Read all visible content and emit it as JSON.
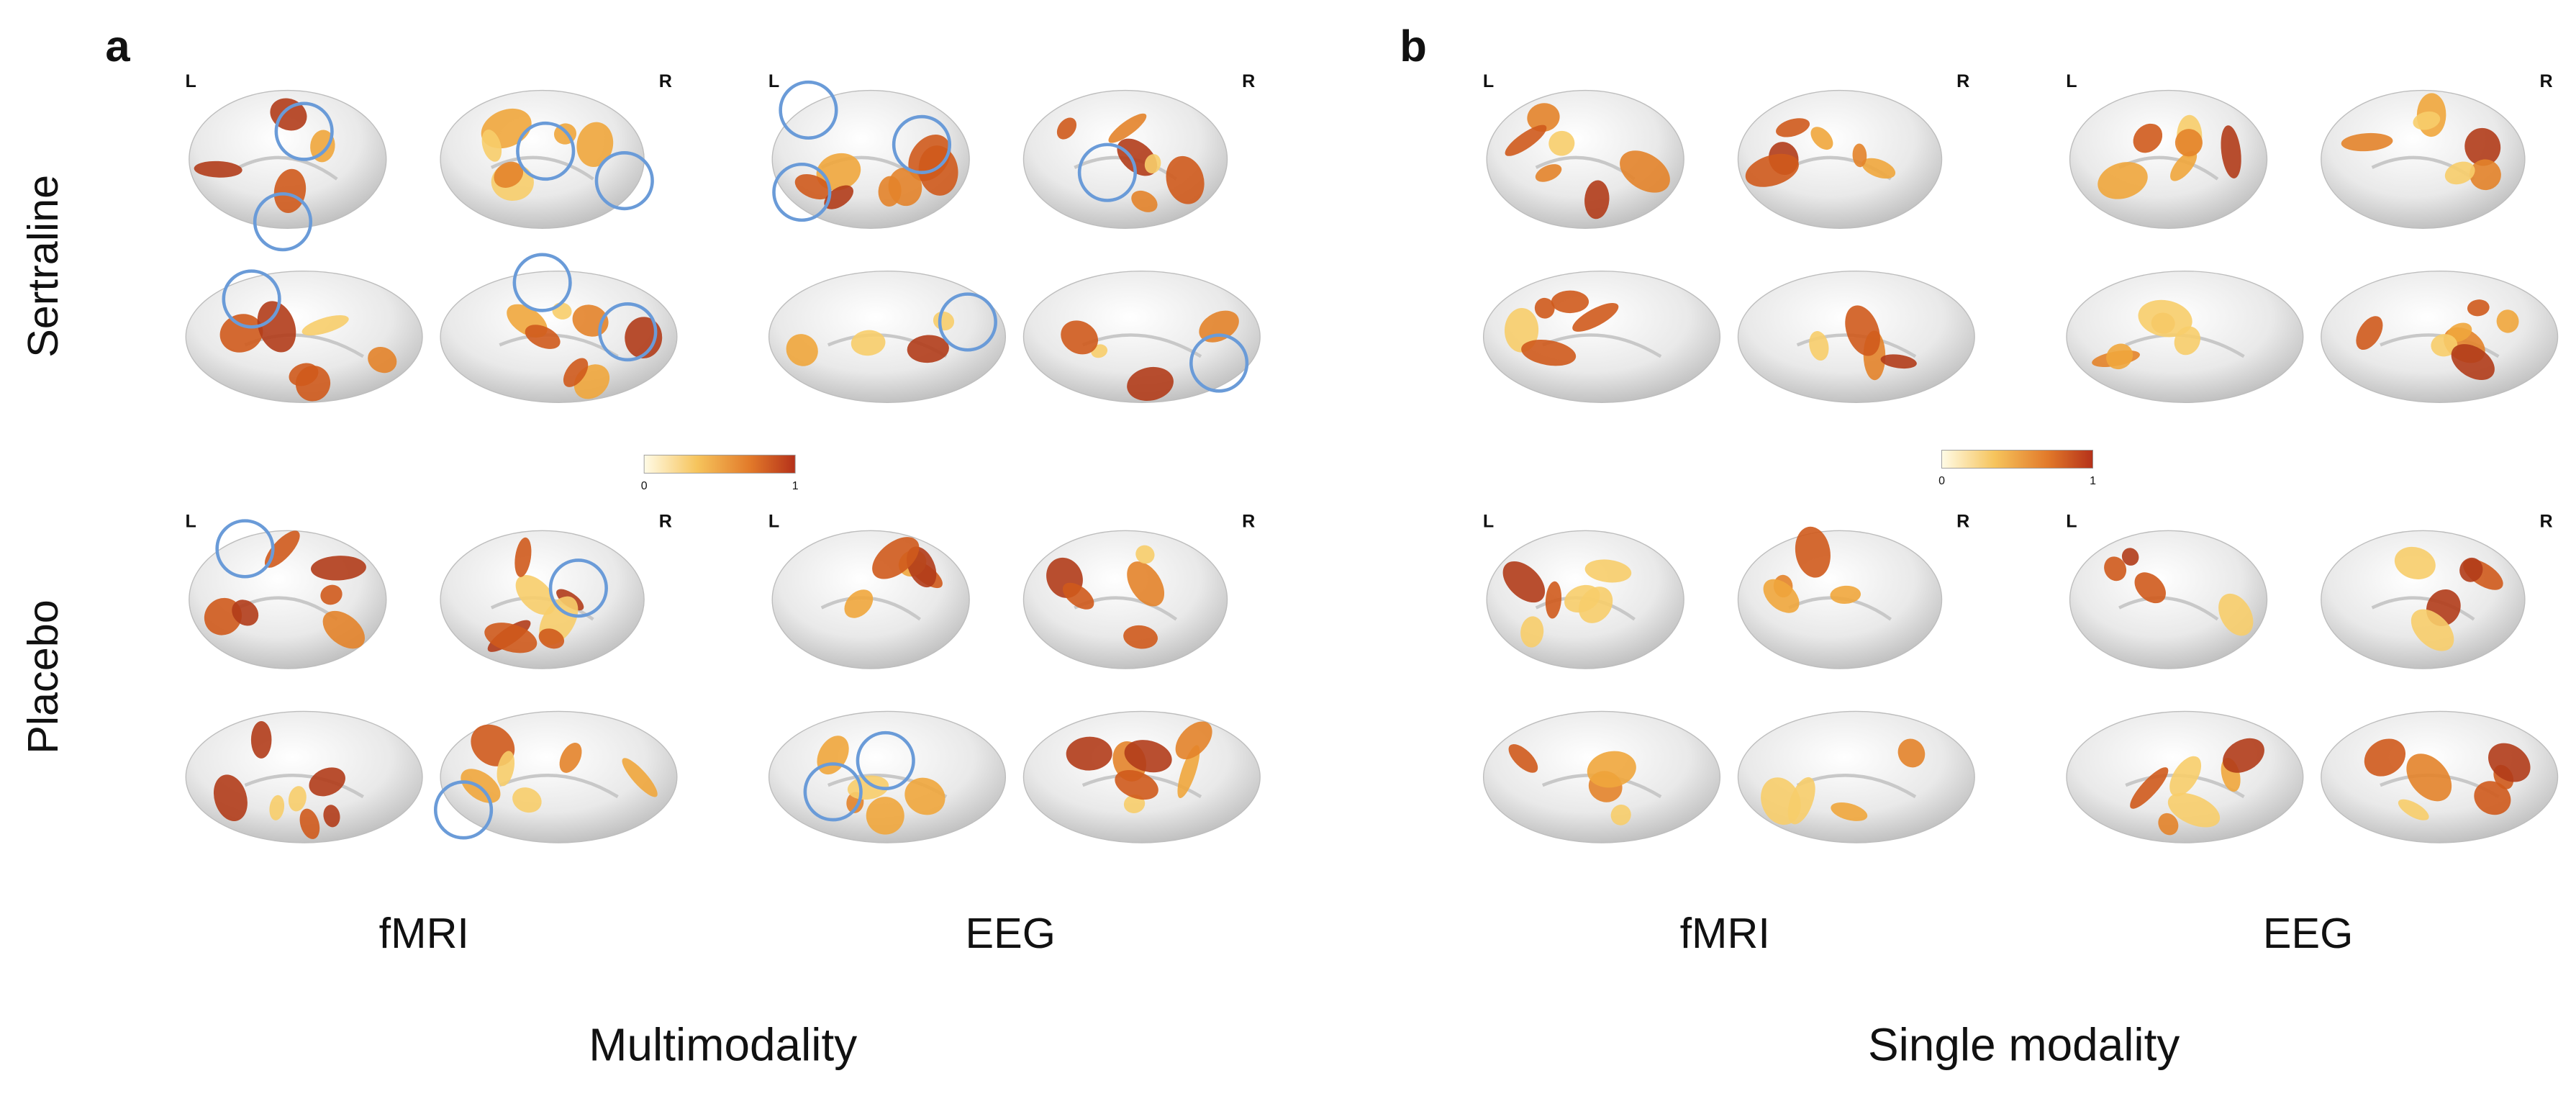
{
  "panels": [
    {
      "label": "a",
      "title": "Multimodality",
      "columns": [
        "fMRI",
        "EEG"
      ],
      "colorbar": {
        "min": 0,
        "max": 1
      }
    },
    {
      "label": "b",
      "title": "Single modality",
      "columns": [
        "fMRI",
        "EEG"
      ],
      "colorbar": {
        "min": 0,
        "max": 1
      }
    }
  ],
  "rows": [
    "Sertraline",
    "Placebo"
  ],
  "hemispheres": {
    "left": "L",
    "right": "R"
  }
}
